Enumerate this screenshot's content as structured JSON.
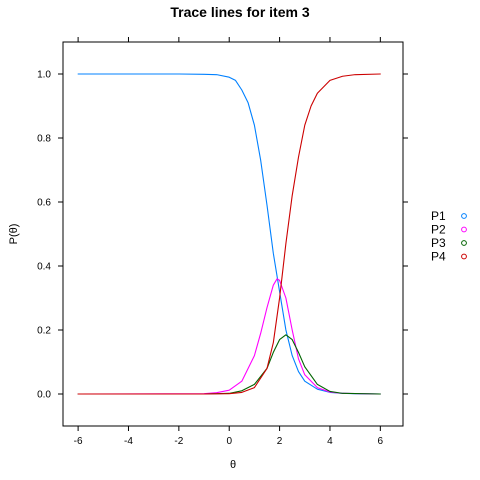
{
  "chart_data": {
    "type": "line",
    "title": "Trace lines for item 3",
    "xlabel": "θ",
    "ylabel": "P(θ)",
    "xlim": [
      -6.6,
      6.9
    ],
    "ylim": [
      -0.1,
      1.1
    ],
    "x_ticks": [
      -6,
      -4,
      -2,
      0,
      2,
      4,
      6
    ],
    "x_tick_labels": [
      "-6",
      "-4",
      "-2",
      "0",
      "2",
      "4",
      "6"
    ],
    "y_ticks": [
      0.0,
      0.2,
      0.4,
      0.6,
      0.8,
      1.0
    ],
    "y_tick_labels": [
      "0.0",
      "0.2",
      "0.4",
      "0.6",
      "0.8",
      "1.0"
    ],
    "legend_position": "right",
    "series": [
      {
        "name": "P1",
        "color": "#0080ff",
        "x": [
          -6,
          -2,
          -1,
          -0.5,
          0,
          0.25,
          0.5,
          0.75,
          1,
          1.25,
          1.5,
          1.75,
          2,
          2.25,
          2.5,
          2.75,
          3,
          3.5,
          4,
          4.5,
          5,
          6
        ],
        "y": [
          1.0,
          1.0,
          0.999,
          0.998,
          0.99,
          0.98,
          0.95,
          0.91,
          0.84,
          0.73,
          0.59,
          0.44,
          0.32,
          0.2,
          0.12,
          0.07,
          0.04,
          0.015,
          0.005,
          0.002,
          0.001,
          0.0
        ]
      },
      {
        "name": "P2",
        "color": "#ff00ff",
        "x": [
          -6,
          -1,
          -0.5,
          0,
          0.5,
          1,
          1.25,
          1.5,
          1.75,
          1.9,
          2,
          2.25,
          2.5,
          2.75,
          3,
          3.5,
          4,
          4.5,
          6
        ],
        "y": [
          0.0,
          0.001,
          0.004,
          0.012,
          0.04,
          0.12,
          0.19,
          0.27,
          0.34,
          0.36,
          0.355,
          0.3,
          0.2,
          0.11,
          0.06,
          0.02,
          0.006,
          0.002,
          0.0
        ]
      },
      {
        "name": "P3",
        "color": "#006400",
        "x": [
          -6,
          -1,
          0,
          0.5,
          1,
          1.5,
          1.75,
          2,
          2.25,
          2.5,
          2.75,
          3,
          3.5,
          4,
          4.5,
          6
        ],
        "y": [
          0.0,
          0.0,
          0.002,
          0.01,
          0.03,
          0.08,
          0.13,
          0.17,
          0.185,
          0.17,
          0.13,
          0.085,
          0.03,
          0.008,
          0.002,
          0.0
        ]
      },
      {
        "name": "P4",
        "color": "#cc0000",
        "x": [
          -6,
          -1,
          0,
          0.5,
          1,
          1.5,
          1.75,
          2,
          2.25,
          2.5,
          2.75,
          3,
          3.25,
          3.5,
          4,
          4.5,
          5,
          6
        ],
        "y": [
          0.0,
          0.0,
          0.001,
          0.005,
          0.02,
          0.08,
          0.16,
          0.3,
          0.47,
          0.62,
          0.74,
          0.84,
          0.9,
          0.94,
          0.98,
          0.993,
          0.998,
          1.0
        ]
      }
    ]
  }
}
